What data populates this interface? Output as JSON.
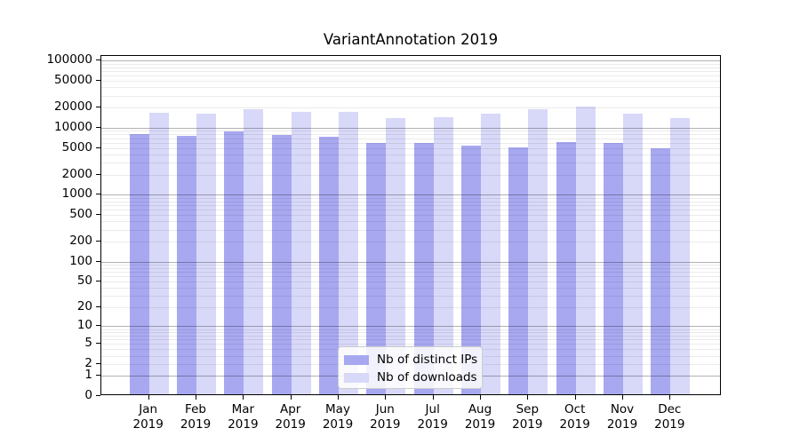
{
  "title": "VariantAnnotation 2019",
  "chart_data": {
    "type": "bar",
    "title": "VariantAnnotation 2019",
    "categories": [
      "Jan 2019",
      "Feb 2019",
      "Mar 2019",
      "Apr 2019",
      "May 2019",
      "Jun 2019",
      "Jul 2019",
      "Aug 2019",
      "Sep 2019",
      "Oct 2019",
      "Nov 2019",
      "Dec 2019"
    ],
    "x_months": [
      "Jan",
      "Feb",
      "Mar",
      "Apr",
      "May",
      "Jun",
      "Jul",
      "Aug",
      "Sep",
      "Oct",
      "Nov",
      "Dec"
    ],
    "x_year": "2019",
    "series": [
      {
        "name": "Nb of distinct IPs",
        "color": "#a8a8f1",
        "values": [
          7600,
          7200,
          8300,
          7400,
          6900,
          5600,
          5500,
          5100,
          4800,
          5800,
          5600,
          4700
        ]
      },
      {
        "name": "Nb of downloads",
        "color": "#d8d8f8",
        "values": [
          15600,
          15200,
          17800,
          16300,
          16000,
          13100,
          13400,
          15300,
          17600,
          19500,
          15100,
          13100
        ]
      }
    ],
    "y_axis": {
      "scale": "log1p",
      "min": 0,
      "max": 100000,
      "tick_labels": [
        "100000",
        "50000",
        "20000",
        "10000",
        "5000",
        "2000",
        "1000",
        "500",
        "200",
        "100",
        "50",
        "20",
        "10",
        "5",
        "2",
        "1",
        "0"
      ]
    },
    "grid": {
      "major_on_powers_of_ten": true,
      "major_color": "#b0b0b0",
      "minor_color": "#ececec"
    },
    "legend": {
      "position": "lower-center"
    }
  }
}
